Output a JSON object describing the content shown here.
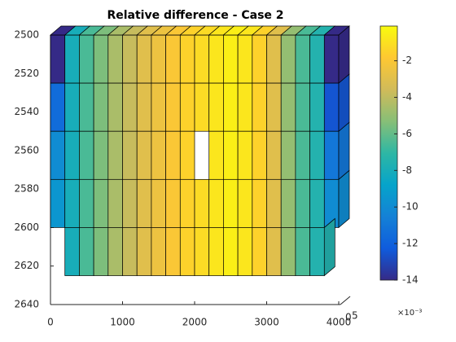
{
  "chart_data": {
    "type": "mesh",
    "title": "Relative difference - Case 2",
    "xlim": [
      0,
      4000
    ],
    "xticks": [
      0,
      1000,
      2000,
      3000,
      4000
    ],
    "ylim": [
      2500,
      2640
    ],
    "yticks": [
      2500,
      2520,
      2540,
      2560,
      2580,
      2600,
      2620,
      2640
    ],
    "y_reversed": true,
    "zticks": [
      0,
      5
    ],
    "x_edges": [
      0,
      200,
      400,
      600,
      800,
      1000,
      1200,
      1400,
      1600,
      1800,
      2000,
      2200,
      2400,
      2600,
      2800,
      3000,
      3200,
      3400,
      3600,
      3800,
      4000
    ],
    "depth_edges": [
      2500,
      2525,
      2550,
      2575,
      2600,
      2625
    ],
    "values": [
      [
        -14,
        -8,
        -6.5,
        -5.5,
        -4.5,
        -3.8,
        -3,
        -2.5,
        -2,
        -1.5,
        -1.2,
        -0.8,
        -0.5,
        -0.8,
        -1.5,
        -3,
        -5,
        -6.5,
        -7.5,
        -14
      ],
      [
        -11.5,
        -8,
        -6.5,
        -5.5,
        -4.5,
        -3.8,
        -3,
        -2.5,
        -2,
        -1.5,
        -1.2,
        -0.8,
        -0.5,
        -0.8,
        -1.5,
        -3,
        -5,
        -6.5,
        -7.5,
        -12.5
      ],
      [
        -10,
        -8,
        -6.5,
        -5.5,
        -4.5,
        -3.8,
        -3,
        -2.5,
        -2,
        -1.5,
        null,
        -0.8,
        -0.5,
        -0.8,
        -1.5,
        -3,
        -5,
        -6.5,
        -7.5,
        -11
      ],
      [
        -9.5,
        -8,
        -6.5,
        -5.5,
        -4.5,
        -3.8,
        -3,
        -2.5,
        -2,
        -1.5,
        -1.2,
        -0.8,
        -0.5,
        -0.8,
        -1.5,
        -3,
        -5,
        -6.5,
        -7.5,
        -10
      ],
      [
        null,
        -8,
        -6.5,
        -5.5,
        -4.5,
        -3.8,
        -3,
        -2.5,
        -2,
        -1.5,
        -1.2,
        -0.8,
        -0.5,
        -0.8,
        -1.5,
        -3,
        -5,
        -6.5,
        -7.5,
        null
      ]
    ],
    "clim": [
      -14,
      -0.1
    ],
    "colorbar_ticks": [
      -2,
      -4,
      -6,
      -8,
      -10,
      -12,
      -14
    ],
    "colorbar_label": "×10⁻³"
  }
}
